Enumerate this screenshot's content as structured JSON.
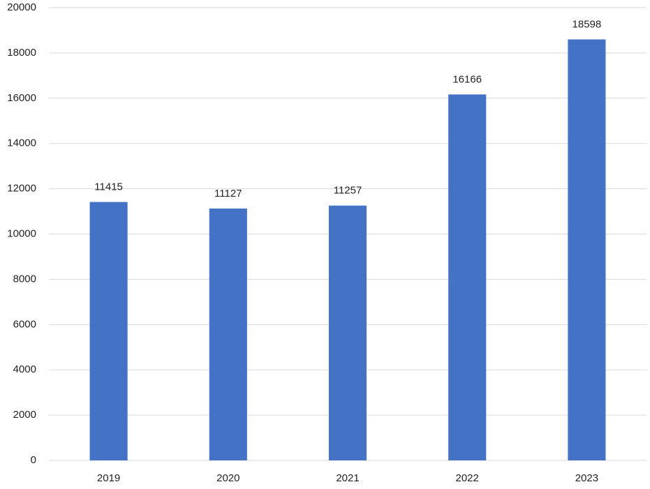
{
  "chart_data": {
    "type": "bar",
    "categories": [
      "2019",
      "2020",
      "2021",
      "2022",
      "2023"
    ],
    "values": [
      11415,
      11127,
      11257,
      16166,
      18598
    ],
    "color": "#4472c4",
    "ylim": [
      0,
      20000
    ],
    "yticks": [
      0,
      2000,
      4000,
      6000,
      8000,
      10000,
      12000,
      14000,
      16000,
      18000,
      20000
    ],
    "grid": true,
    "data_labels": true
  }
}
